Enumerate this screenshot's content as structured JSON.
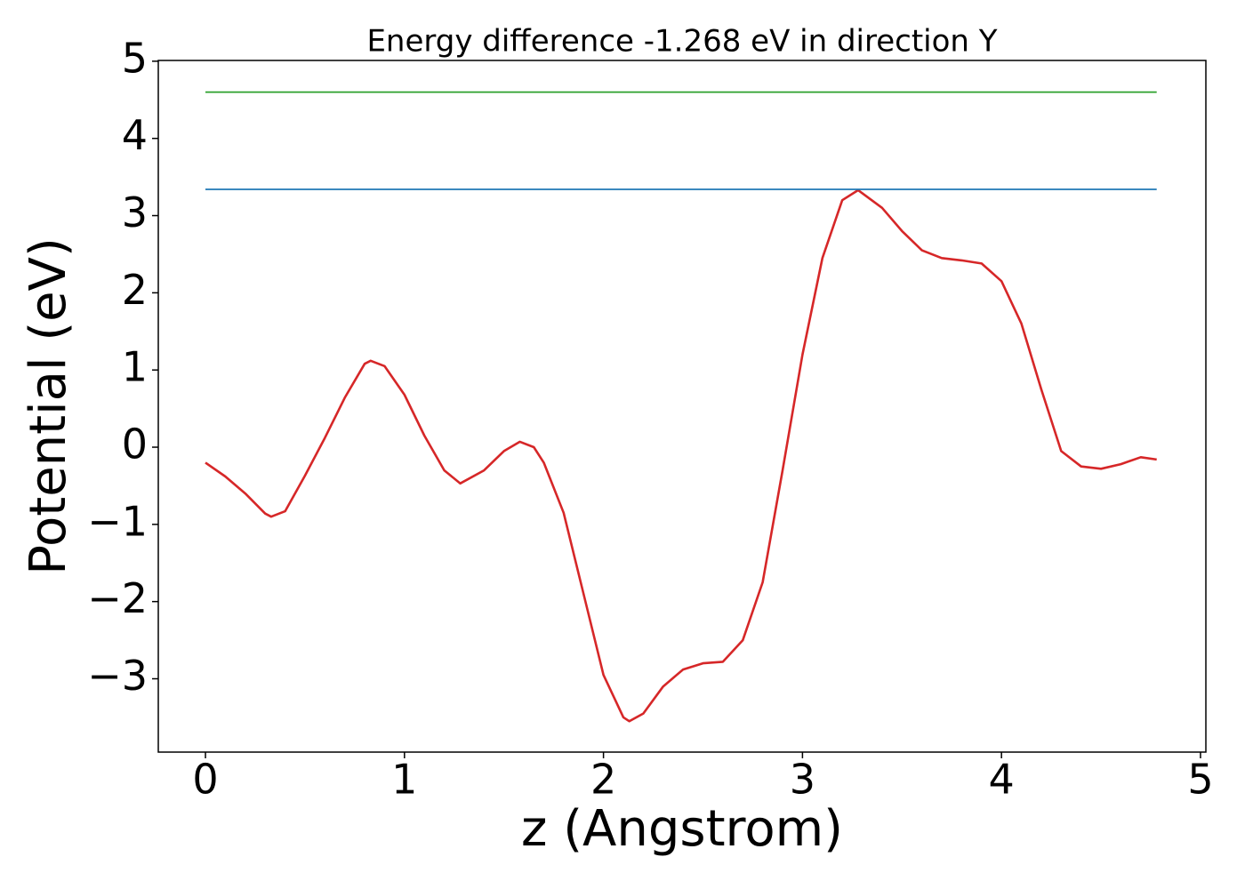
{
  "chart_data": {
    "type": "line",
    "title": "Energy difference -1.268 eV in direction Y",
    "x_label": "z (Angstrom)",
    "y_label": "Potential (eV)",
    "xlim": [
      -0.237,
      5.027
    ],
    "ylim": [
      -3.95,
      5.01
    ],
    "xticks": [
      0,
      1,
      2,
      3,
      4,
      5
    ],
    "yticks": [
      {
        "value": -3,
        "label": "−3"
      },
      {
        "value": -2,
        "label": "−2"
      },
      {
        "value": -1,
        "label": "−1"
      },
      0,
      1,
      2,
      3,
      4,
      5
    ],
    "grid": false,
    "series": [
      {
        "color": "#d62728",
        "x": [
          0,
          0.1,
          0.2,
          0.3,
          0.33,
          0.4,
          0.5,
          0.6,
          0.7,
          0.8,
          0.83,
          0.9,
          1.0,
          1.1,
          1.2,
          1.28,
          1.4,
          1.5,
          1.58,
          1.65,
          1.7,
          1.8,
          1.9,
          2.0,
          2.1,
          2.13,
          2.2,
          2.3,
          2.4,
          2.5,
          2.6,
          2.7,
          2.8,
          2.9,
          3.0,
          3.1,
          3.2,
          3.28,
          3.4,
          3.5,
          3.6,
          3.7,
          3.8,
          3.9,
          4.0,
          4.1,
          4.2,
          4.3,
          4.4,
          4.5,
          4.6,
          4.7,
          4.78
        ],
        "values": [
          -0.2,
          -0.38,
          -0.6,
          -0.86,
          -0.9,
          -0.83,
          -0.37,
          0.12,
          0.64,
          1.08,
          1.12,
          1.05,
          0.68,
          0.15,
          -0.3,
          -0.47,
          -0.3,
          -0.05,
          0.07,
          0.0,
          -0.2,
          -0.85,
          -1.9,
          -2.95,
          -3.5,
          -3.55,
          -3.45,
          -3.1,
          -2.88,
          -2.8,
          -2.78,
          -2.5,
          -1.75,
          -0.3,
          1.2,
          2.45,
          3.2,
          3.33,
          3.1,
          2.8,
          2.55,
          2.45,
          2.42,
          2.38,
          2.15,
          1.6,
          0.75,
          -0.05,
          -0.25,
          -0.28,
          -0.22,
          -0.13,
          -0.16
        ]
      },
      {
        "color": "#1f77b4",
        "x": [
          0,
          4.78
        ],
        "values": [
          3.34,
          3.34
        ]
      },
      {
        "color": "#2ca02c",
        "x": [
          0,
          4.78
        ],
        "values": [
          4.6,
          4.6
        ]
      }
    ]
  }
}
